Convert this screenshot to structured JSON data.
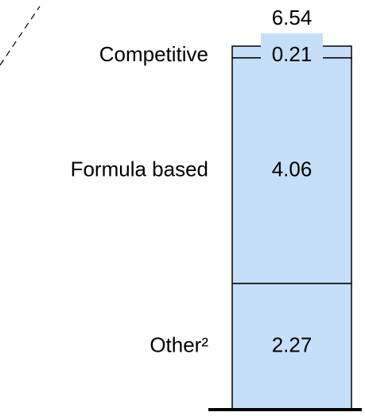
{
  "chart_data": {
    "type": "stacked_bar",
    "categories": [
      "Other²",
      "Formula based",
      "Competitive"
    ],
    "values": [
      2.27,
      4.06,
      0.21
    ],
    "total": 6.54,
    "color": "#c5dff8"
  }
}
